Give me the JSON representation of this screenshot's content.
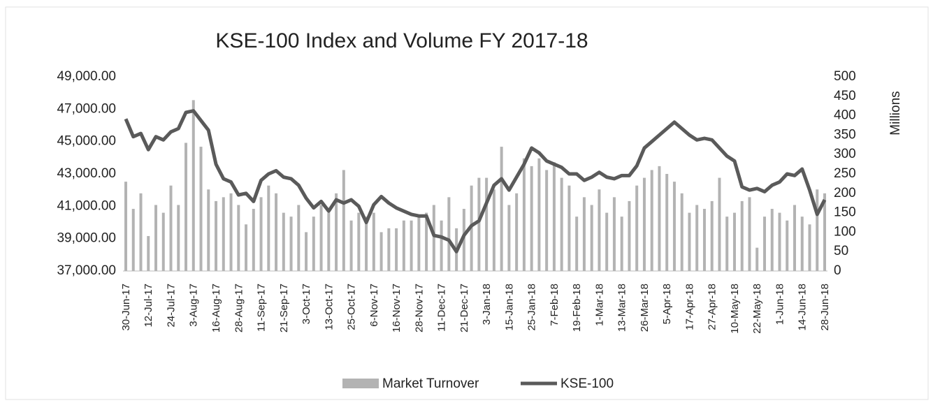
{
  "chart_data": {
    "type": "combo",
    "title": "KSE-100 Index and Volume FY 2017-18",
    "y2_label": "Millions",
    "categories": [
      "30-Jun-17",
      null,
      null,
      "12-Jul-17",
      null,
      null,
      "24-Jul-17",
      null,
      null,
      "3-Aug-17",
      null,
      null,
      "16-Aug-17",
      null,
      null,
      "28-Aug-17",
      null,
      null,
      "11-Sep-17",
      null,
      null,
      "21-Sep-17",
      null,
      null,
      "3-Oct-17",
      null,
      null,
      "13-Oct-17",
      null,
      null,
      "25-Oct-17",
      null,
      null,
      "6-Nov-17",
      null,
      null,
      "16-Nov-17",
      null,
      null,
      "28-Nov-17",
      null,
      null,
      "11-Dec-17",
      null,
      null,
      "21-Dec-17",
      null,
      null,
      "3-Jan-18",
      null,
      null,
      "15-Jan-18",
      null,
      null,
      "25-Jan-18",
      null,
      null,
      "7-Feb-18",
      null,
      null,
      "19-Feb-18",
      null,
      null,
      "1-Mar-18",
      null,
      null,
      "13-Mar-18",
      null,
      null,
      "26-Mar-18",
      null,
      null,
      "5-Apr-18",
      null,
      null,
      "17-Apr-18",
      null,
      null,
      "27-Apr-18",
      null,
      null,
      "10-May-18",
      null,
      null,
      "22-May-18",
      null,
      null,
      "1-Jun-18",
      null,
      null,
      "14-Jun-18",
      null,
      null,
      "28-Jun-18"
    ],
    "series": [
      {
        "name": "Market Turnover",
        "type": "bar",
        "axis": "y2",
        "color": "#b3b3b3",
        "values": [
          230,
          160,
          200,
          90,
          170,
          150,
          220,
          170,
          330,
          440,
          320,
          210,
          180,
          190,
          200,
          170,
          120,
          160,
          190,
          220,
          200,
          150,
          140,
          170,
          100,
          140,
          170,
          150,
          200,
          260,
          130,
          150,
          140,
          150,
          100,
          110,
          110,
          130,
          130,
          140,
          150,
          170,
          130,
          190,
          110,
          160,
          220,
          240,
          240,
          210,
          320,
          170,
          200,
          290,
          270,
          290,
          260,
          280,
          240,
          220,
          140,
          190,
          170,
          210,
          150,
          190,
          140,
          180,
          220,
          240,
          260,
          270,
          250,
          230,
          200,
          150,
          170,
          160,
          180,
          240,
          140,
          150,
          180,
          190,
          60,
          140,
          160,
          150,
          130,
          170,
          140,
          120,
          210,
          200
        ]
      },
      {
        "name": "KSE-100",
        "type": "line",
        "color": "#5a5a5a",
        "values": [
          46400,
          45300,
          45500,
          44500,
          45300,
          45100,
          45600,
          45800,
          46800,
          46900,
          46300,
          45700,
          43600,
          42700,
          42500,
          41700,
          41800,
          41300,
          42600,
          43000,
          43200,
          42800,
          42700,
          42300,
          41500,
          40900,
          41300,
          40700,
          41400,
          41200,
          41400,
          41000,
          40000,
          41100,
          41600,
          41200,
          40900,
          40700,
          40500,
          40400,
          40400,
          39200,
          39100,
          38900,
          38200,
          39200,
          39800,
          40100,
          41200,
          42300,
          42700,
          42000,
          42800,
          43600,
          44600,
          44300,
          43800,
          43600,
          43400,
          43000,
          43000,
          42600,
          42800,
          43100,
          42800,
          42700,
          42900,
          42900,
          43500,
          44600,
          45000,
          45400,
          45800,
          46200,
          45800,
          45400,
          45100,
          45200,
          45100,
          44600,
          44100,
          43800,
          42200,
          42000,
          42100,
          41900,
          42300,
          42500,
          43000,
          42900,
          43300,
          42000,
          40500,
          41400
        ]
      }
    ],
    "ylim": [
      37000,
      49000
    ],
    "yticks": [
      {
        "value": 37000,
        "label": "37,000.00"
      },
      {
        "value": 39000,
        "label": "39,000.00"
      },
      {
        "value": 41000,
        "label": "41,000.00"
      },
      {
        "value": 43000,
        "label": "43,000.00"
      },
      {
        "value": 45000,
        "label": "45,000.00"
      },
      {
        "value": 47000,
        "label": "47,000.00"
      },
      {
        "value": 49000,
        "label": "49,000.00"
      }
    ],
    "y2lim": [
      0,
      500
    ],
    "y2ticks": [
      0,
      50,
      100,
      150,
      200,
      250,
      300,
      350,
      400,
      450,
      500
    ],
    "legend": "bottom"
  }
}
